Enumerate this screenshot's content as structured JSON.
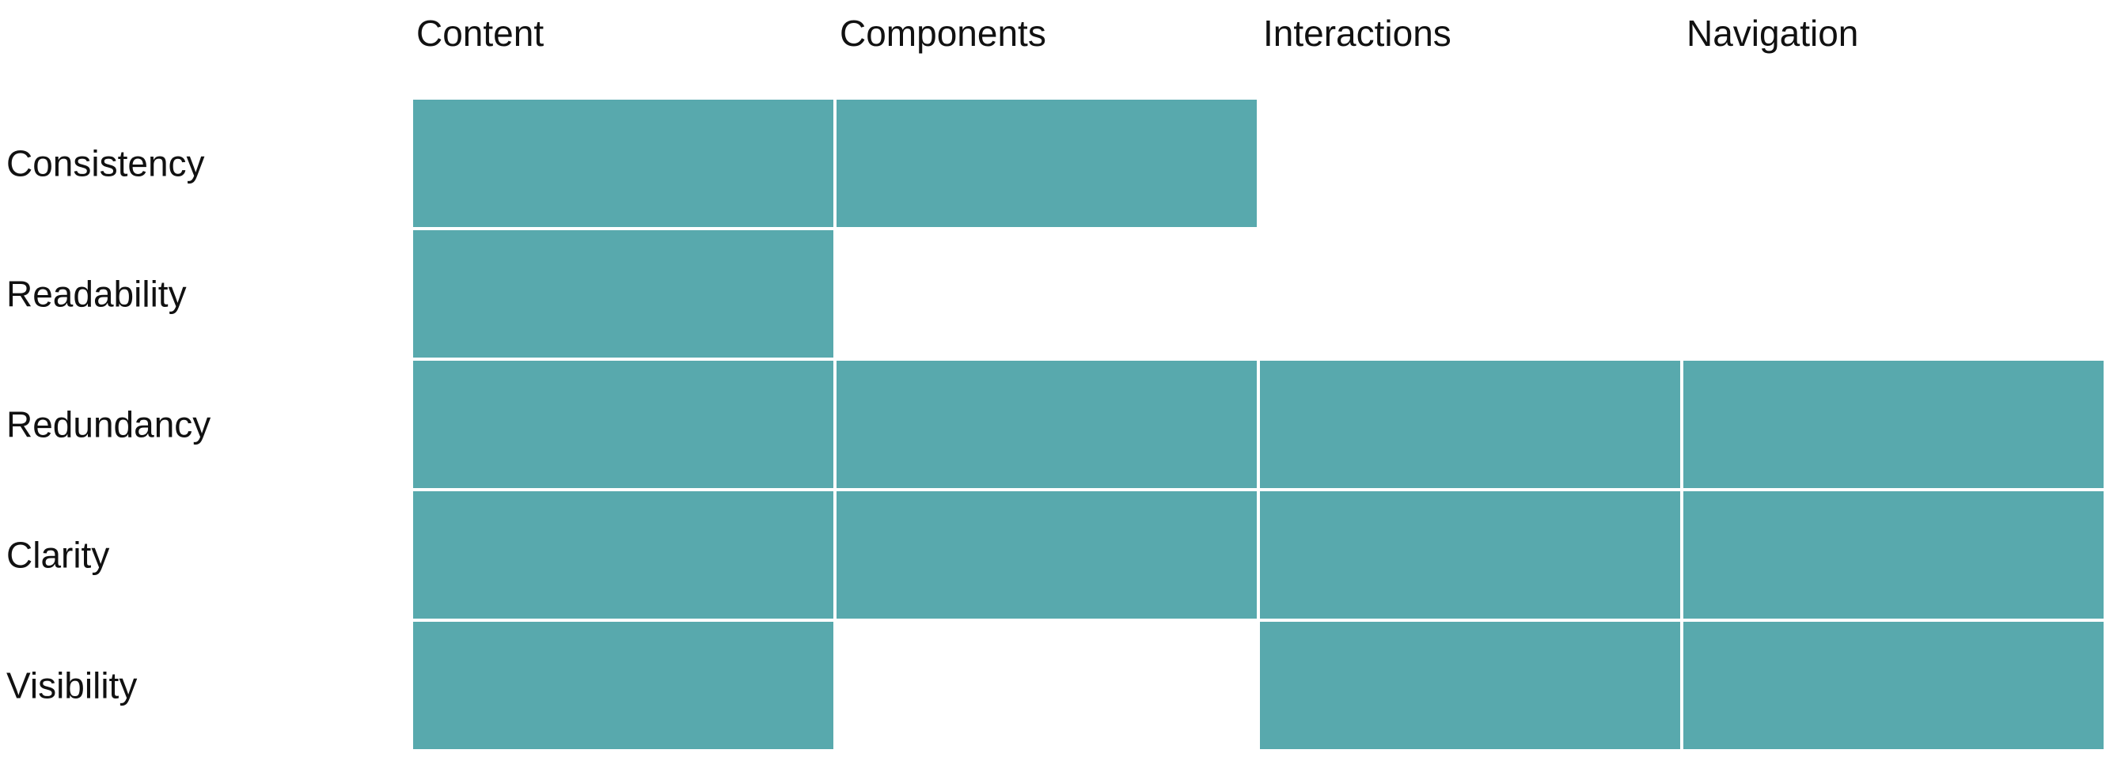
{
  "chart_data": {
    "type": "heatmap",
    "title": "",
    "xlabel": "",
    "ylabel": "",
    "grid": false,
    "columns": [
      "Content",
      "Components",
      "Interactions",
      "Navigation"
    ],
    "rows": [
      "Consistency",
      "Readability",
      "Redundancy",
      "Clarity",
      "Visibility"
    ],
    "values": [
      [
        1,
        1,
        0,
        0
      ],
      [
        1,
        0,
        0,
        0
      ],
      [
        1,
        1,
        1,
        1
      ],
      [
        1,
        1,
        1,
        1
      ],
      [
        1,
        0,
        1,
        1
      ]
    ],
    "filled_color": "#58a9ad",
    "empty_color": "#ffffff"
  }
}
